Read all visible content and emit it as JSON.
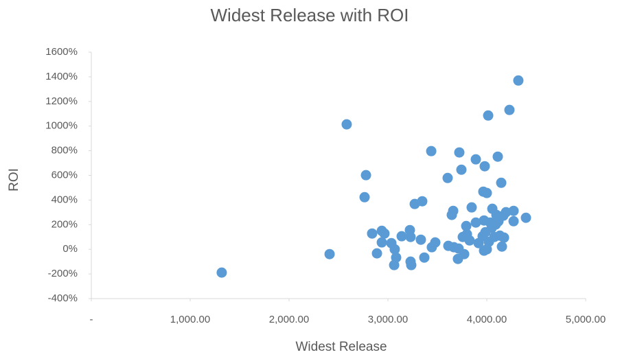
{
  "chart_data": {
    "type": "scatter",
    "title": "Widest Release with ROI",
    "x_label": "Widest Release",
    "y_label": "ROI",
    "xlim": [
      0,
      5000
    ],
    "ylim": [
      -400,
      1600
    ],
    "xticks": [
      {
        "value": 0,
        "label": "-"
      },
      {
        "value": 1000,
        "label": "1,000.00"
      },
      {
        "value": 2000,
        "label": "2,000.00"
      },
      {
        "value": 3000,
        "label": "3,000.00"
      },
      {
        "value": 4000,
        "label": "4,000.00"
      },
      {
        "value": 5000,
        "label": "5,000.00"
      }
    ],
    "yticks": [
      {
        "value": -400,
        "label": "-400%"
      },
      {
        "value": -200,
        "label": "-200%"
      },
      {
        "value": 0,
        "label": "0%"
      },
      {
        "value": 200,
        "label": "200%"
      },
      {
        "value": 400,
        "label": "400%"
      },
      {
        "value": 600,
        "label": "600%"
      },
      {
        "value": 800,
        "label": "800%"
      },
      {
        "value": 1000,
        "label": "1000%"
      },
      {
        "value": 1200,
        "label": "1200%"
      },
      {
        "value": 1400,
        "label": "1400%"
      },
      {
        "value": 1600,
        "label": "1600%"
      }
    ],
    "grid": false,
    "color": "#5b9bd5",
    "x": [
      1319,
      2410,
      2583,
      2778,
      2764,
      2840,
      2889,
      2938,
      2938,
      2965,
      3035,
      3069,
      3083,
      3063,
      3139,
      3222,
      3229,
      3229,
      3236,
      3271,
      3333,
      3347,
      3368,
      3438,
      3444,
      3479,
      3604,
      3611,
      3660,
      3667,
      3646,
      3715,
      3708,
      3722,
      3743,
      3771,
      3757,
      3792,
      3799,
      3826,
      3847,
      3889,
      3889,
      3917,
      3958,
      3965,
      3972,
      3979,
      3972,
      3986,
      4000,
      4000,
      4014,
      4021,
      4035,
      4056,
      4049,
      4076,
      4097,
      4111,
      4090,
      4118,
      4132,
      4146,
      4153,
      4167,
      4174,
      4194,
      4229,
      4271,
      4271,
      4319,
      4396
    ],
    "y": [
      -189,
      -39,
      1014,
      602,
      423,
      128,
      -33,
      150,
      56,
      128,
      50,
      0,
      -67,
      -128,
      106,
      156,
      100,
      -100,
      -128,
      368,
      78,
      390,
      -67,
      797,
      17,
      56,
      579,
      28,
      312,
      17,
      279,
      6,
      -78,
      786,
      646,
      -39,
      100,
      189,
      123,
      72,
      340,
      730,
      217,
      50,
      106,
      468,
      234,
      674,
      -11,
      139,
      457,
      0,
      1086,
      61,
      217,
      329,
      173,
      100,
      279,
      752,
      201,
      228,
      111,
      540,
      22,
      273,
      95,
      301,
      1131,
      312,
      228,
      1370,
      256
    ]
  }
}
